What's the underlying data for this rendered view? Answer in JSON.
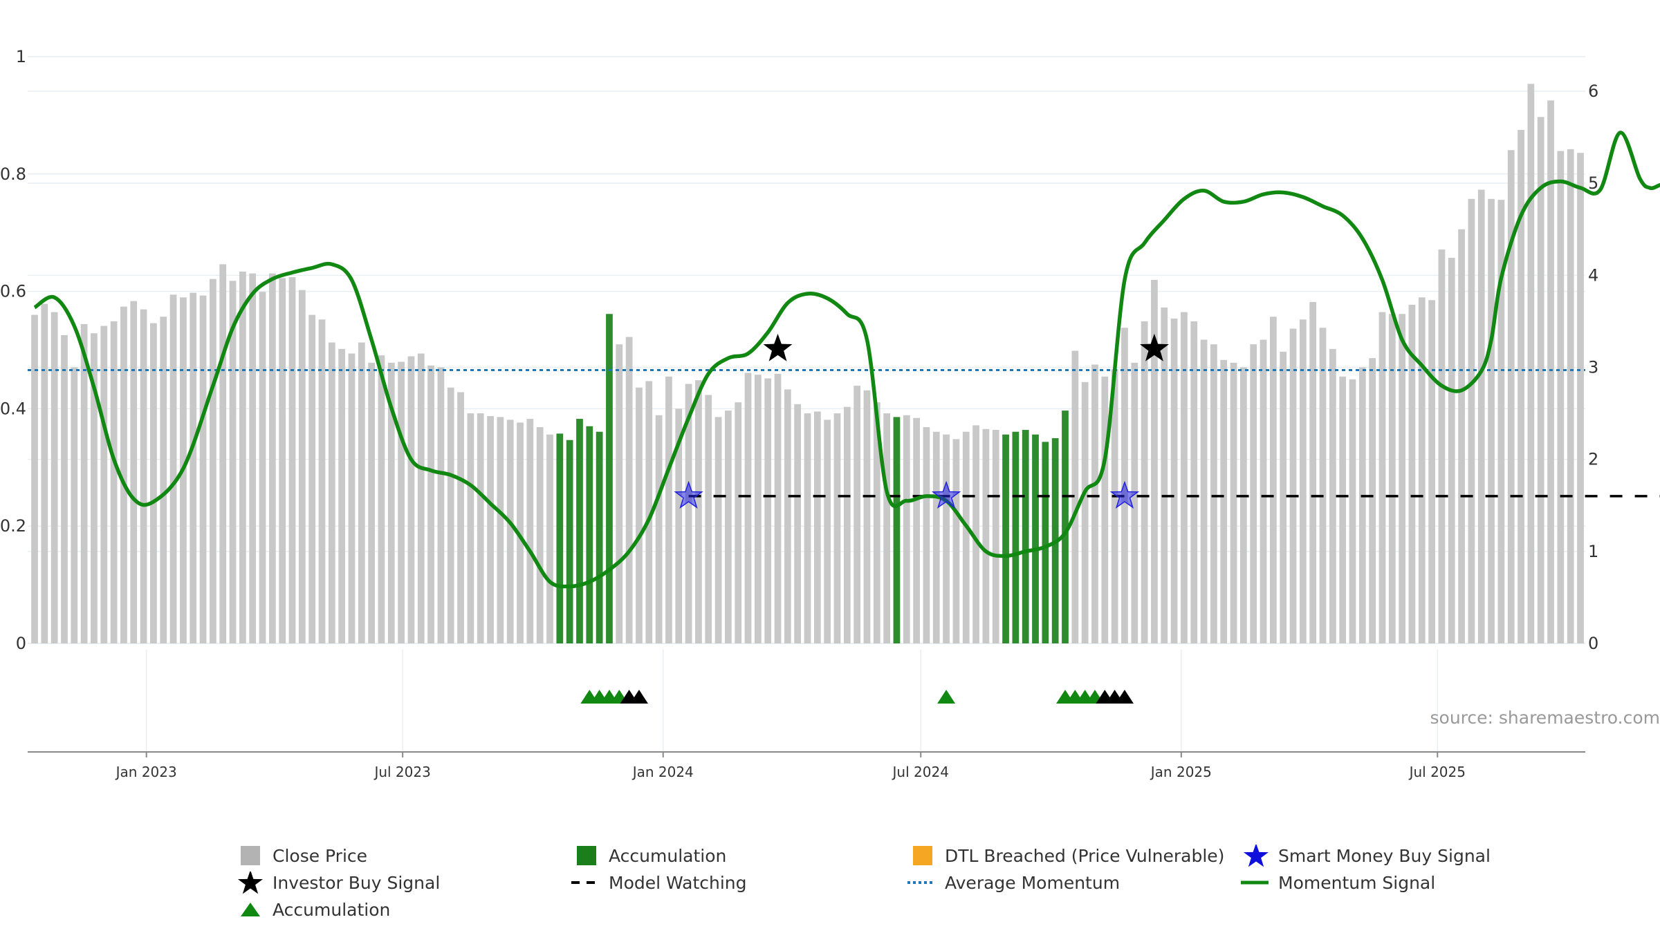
{
  "chart_data": {
    "type": "bar",
    "title": "",
    "y_left_ticks": [
      "0",
      "0.2",
      "0.4",
      "0.6",
      "0.8",
      "1"
    ],
    "y_right_ticks": [
      "0",
      "1",
      "2",
      "3",
      "4",
      "5",
      "6"
    ],
    "x_ticks": [
      {
        "label": "Jan 2023",
        "date": "2023-01-01"
      },
      {
        "label": "Jul 2023",
        "date": "2023-07-01"
      },
      {
        "label": "Jan 2024",
        "date": "2024-01-01"
      },
      {
        "label": "Jul 2024",
        "date": "2024-07-01"
      },
      {
        "label": "Jan 2025",
        "date": "2025-01-01"
      },
      {
        "label": "Jul 2025",
        "date": "2025-07-01"
      }
    ],
    "x_range": [
      "2022-10-07",
      "2025-09-27"
    ],
    "ylim_left": [
      0,
      1
    ],
    "ylim_right": [
      0,
      6
    ],
    "grid": "horizontal",
    "legend_position": "bottom",
    "close_price": {
      "start_date": "2022-10-14",
      "interval_days": 7,
      "values": [
        3.57,
        3.69,
        3.6,
        3.35,
        3.0,
        3.47,
        3.37,
        3.45,
        3.5,
        3.66,
        3.72,
        3.63,
        3.48,
        3.55,
        3.79,
        3.76,
        3.81,
        3.78,
        3.96,
        4.12,
        3.94,
        4.04,
        4.02,
        3.82,
        4.02,
        3.97,
        3.98,
        3.84,
        3.57,
        3.52,
        3.27,
        3.2,
        3.15,
        3.27,
        3.05,
        3.13,
        3.05,
        3.06,
        3.12,
        3.15,
        3.02,
        3.0,
        2.78,
        2.73,
        2.5,
        2.5,
        2.47,
        2.46,
        2.43,
        2.4,
        2.44,
        2.35,
        2.27,
        2.28,
        2.21,
        2.44,
        2.36,
        2.3,
        3.58,
        3.25,
        3.33,
        2.78,
        2.85,
        2.48,
        2.9,
        2.55,
        2.82,
        2.86,
        2.7,
        2.46,
        2.53,
        2.62,
        2.94,
        2.92,
        2.88,
        2.93,
        2.76,
        2.6,
        2.5,
        2.52,
        2.43,
        2.5,
        2.57,
        2.8,
        2.75,
        2.62,
        2.5,
        2.46,
        2.48,
        2.45,
        2.35,
        2.3,
        2.27,
        2.22,
        2.3,
        2.37,
        2.33,
        2.32,
        2.27,
        2.3,
        2.32,
        2.27,
        2.19,
        2.23,
        2.53,
        3.18,
        2.84,
        3.03,
        2.9,
        2.98,
        3.43,
        3.05,
        3.5,
        3.95,
        3.65,
        3.53,
        3.6,
        3.5,
        3.3,
        3.25,
        3.08,
        3.05,
        3.0,
        3.25,
        3.3,
        3.55,
        3.17,
        3.42,
        3.52,
        3.71,
        3.43,
        3.2,
        2.9,
        2.87,
        3.0,
        3.1,
        3.6,
        3.58,
        3.58,
        3.68,
        3.76,
        3.73,
        4.28,
        4.19,
        4.5,
        4.83,
        4.93,
        4.83,
        4.82,
        5.36,
        5.58,
        6.08,
        5.72,
        5.9,
        5.35,
        5.37,
        5.33
      ]
    },
    "accumulation_bar_ranges": [
      [
        53,
        58
      ],
      [
        87,
        87
      ],
      [
        98,
        104
      ]
    ],
    "momentum_signal": {
      "knots": [
        [
          0,
          3.65
        ],
        [
          2,
          3.76
        ],
        [
          4,
          3.45
        ],
        [
          6,
          2.78
        ],
        [
          8,
          2.0
        ],
        [
          10,
          1.57
        ],
        [
          12,
          1.54
        ],
        [
          15,
          1.9
        ],
        [
          18,
          2.8
        ],
        [
          20,
          3.43
        ],
        [
          22,
          3.8
        ],
        [
          24,
          3.96
        ],
        [
          26,
          4.03
        ],
        [
          28,
          4.08
        ],
        [
          30,
          4.12
        ],
        [
          32,
          3.95
        ],
        [
          34,
          3.3
        ],
        [
          36,
          2.56
        ],
        [
          38,
          2.0
        ],
        [
          40,
          1.88
        ],
        [
          42,
          1.83
        ],
        [
          44,
          1.72
        ],
        [
          46,
          1.52
        ],
        [
          48,
          1.31
        ],
        [
          50,
          1.0
        ],
        [
          52,
          0.67
        ],
        [
          54,
          0.62
        ],
        [
          56,
          0.67
        ],
        [
          58,
          0.8
        ],
        [
          60,
          1.0
        ],
        [
          62,
          1.35
        ],
        [
          64,
          1.9
        ],
        [
          66,
          2.45
        ],
        [
          68,
          2.93
        ],
        [
          70,
          3.1
        ],
        [
          72,
          3.15
        ],
        [
          74,
          3.38
        ],
        [
          76,
          3.7
        ],
        [
          78,
          3.8
        ],
        [
          80,
          3.75
        ],
        [
          82,
          3.58
        ],
        [
          84,
          3.3
        ],
        [
          86,
          1.65
        ],
        [
          88,
          1.55
        ],
        [
          90,
          1.6
        ],
        [
          92,
          1.55
        ],
        [
          94,
          1.28
        ],
        [
          96,
          1.0
        ],
        [
          98,
          0.95
        ],
        [
          100,
          1.0
        ],
        [
          102,
          1.05
        ],
        [
          104,
          1.2
        ],
        [
          106,
          1.65
        ],
        [
          108,
          2.0
        ],
        [
          110,
          3.95
        ],
        [
          112,
          4.35
        ],
        [
          114,
          4.6
        ],
        [
          116,
          4.83
        ],
        [
          118,
          4.92
        ],
        [
          120,
          4.8
        ],
        [
          122,
          4.8
        ],
        [
          124,
          4.88
        ],
        [
          126,
          4.9
        ],
        [
          128,
          4.85
        ],
        [
          130,
          4.75
        ],
        [
          132,
          4.65
        ],
        [
          134,
          4.4
        ],
        [
          136,
          3.95
        ],
        [
          138,
          3.3
        ],
        [
          140,
          3.02
        ],
        [
          142,
          2.8
        ],
        [
          144,
          2.75
        ],
        [
          146,
          2.96
        ],
        [
          147,
          3.3
        ],
        [
          148,
          3.97
        ],
        [
          150,
          4.65
        ],
        [
          152,
          4.95
        ],
        [
          154,
          5.02
        ],
        [
          156,
          4.95
        ],
        [
          158,
          4.93
        ],
        [
          160,
          5.55
        ],
        [
          162,
          5.05
        ],
        [
          163,
          4.95
        ],
        [
          164,
          4.98
        ],
        [
          166,
          5.08
        ]
      ]
    },
    "average_momentum": 2.97,
    "model_watching": {
      "from_index": 66,
      "to_index": 166,
      "level": 1.6
    },
    "smart_money_buy_signals": [
      {
        "index": 66,
        "value": 1.6
      },
      {
        "index": 92,
        "value": 1.6
      },
      {
        "index": 110,
        "value": 1.6
      }
    ],
    "investor_buy_signals": [
      {
        "index": 75,
        "value": 3.2
      },
      {
        "index": 113,
        "value": 3.2
      }
    ],
    "accumulation_markers": {
      "green": [
        56,
        57,
        58,
        59,
        92,
        104,
        105,
        106,
        107
      ],
      "black": [
        60,
        61,
        108,
        109,
        110
      ]
    },
    "legend": [
      {
        "label": "Close Price",
        "symbol": "square",
        "color": "#b3b3b3"
      },
      {
        "label": "Accumulation",
        "symbol": "square",
        "color": "#1a7f1a"
      },
      {
        "label": "DTL Breached (Price Vulnerable)",
        "symbol": "square",
        "color": "#f5a623"
      },
      {
        "label": "Smart Money Buy Signal",
        "symbol": "star",
        "color": "#1010dd"
      },
      {
        "label": "Investor Buy Signal",
        "symbol": "star",
        "color": "#000000"
      },
      {
        "label": "Model Watching",
        "symbol": "dash",
        "color": "#000000"
      },
      {
        "label": "Average Momentum",
        "symbol": "dot",
        "color": "#1f77b4"
      },
      {
        "label": "Momentum Signal",
        "symbol": "line",
        "color": "#118811"
      },
      {
        "label": "Accumulation",
        "symbol": "triangle",
        "color": "#118811"
      }
    ]
  },
  "source_text": "source: sharemaestro.com",
  "colors": {
    "bar": "#c8c8c8",
    "accumulation": "#2e8b2e",
    "momentum": "#118811",
    "average": "#1f77b4",
    "smart_money": "#2222dd",
    "investor": "#000000",
    "grid": "#e8eef2"
  }
}
